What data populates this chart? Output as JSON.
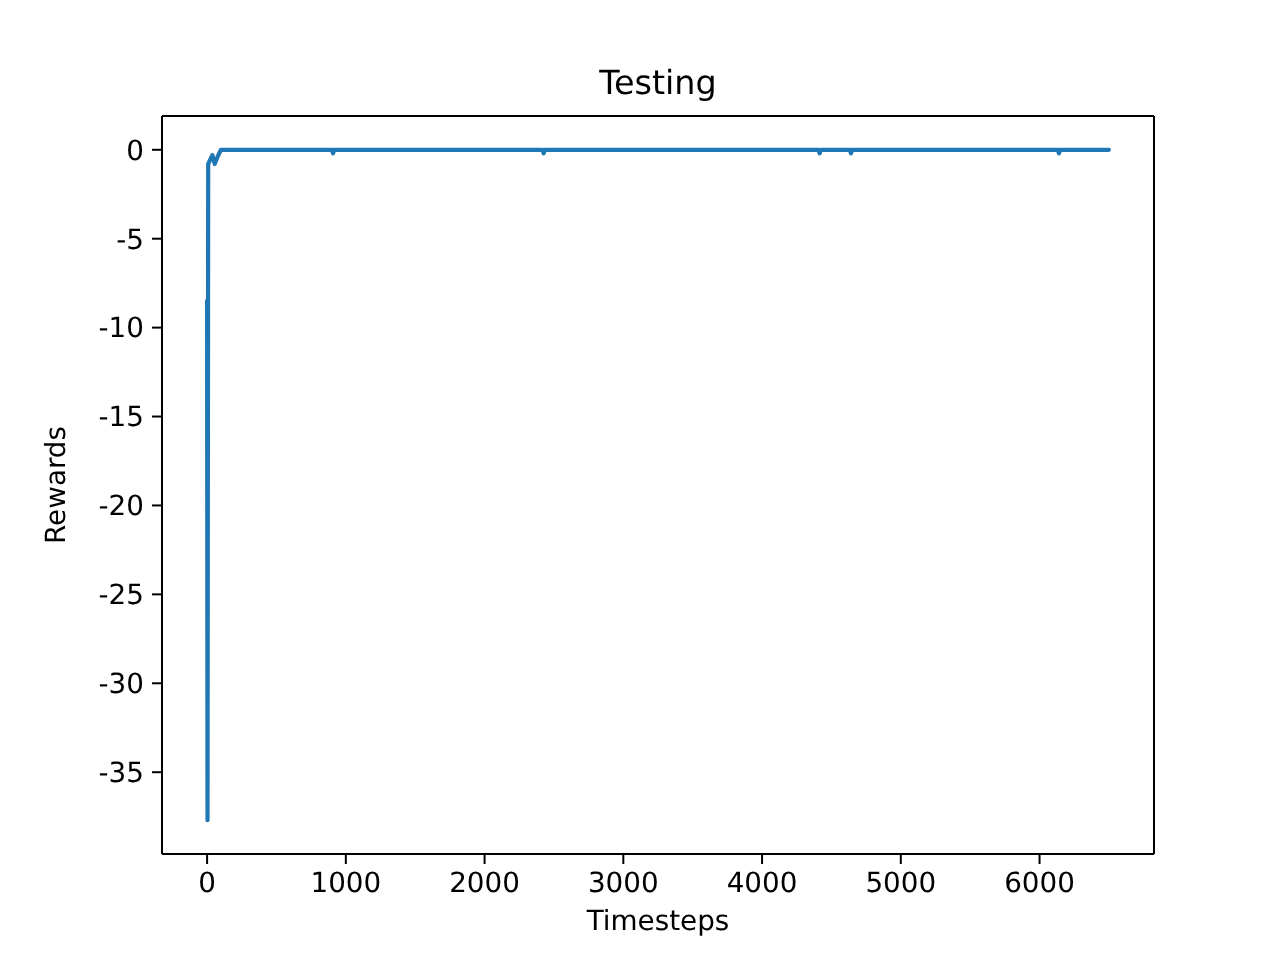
{
  "chart_data": {
    "type": "line",
    "title": "Testing",
    "xlabel": "Timesteps",
    "ylabel": "Rewards",
    "x": [
      0,
      3,
      8,
      20,
      38,
      55,
      75,
      100,
      900,
      908,
      916,
      2418,
      2426,
      2434,
      4407,
      4415,
      4423,
      4633,
      4641,
      4649,
      6132,
      6140,
      6148,
      6500
    ],
    "series": [
      {
        "color": "#1f77b4",
        "values": [
          -8.5,
          -37.7,
          -0.8,
          -0.6,
          -0.3,
          -0.8,
          -0.4,
          0,
          0,
          -0.2,
          0,
          0,
          -0.2,
          0,
          0,
          -0.2,
          0,
          0,
          -0.2,
          0,
          0,
          -0.2,
          0,
          0
        ]
      }
    ],
    "xlim": [
      -325,
      6825
    ],
    "ylim": [
      -39.6,
      1.9
    ],
    "xticks": [
      0,
      1000,
      2000,
      3000,
      4000,
      5000,
      6000
    ],
    "yticks": [
      -35,
      -30,
      -25,
      -20,
      -15,
      -10,
      -5,
      0
    ],
    "marker": "none",
    "line_style": "solid"
  }
}
